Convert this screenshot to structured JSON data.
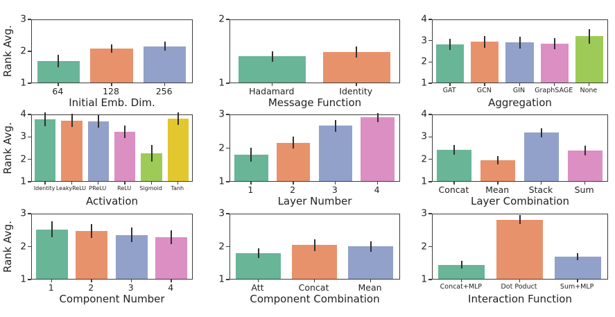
{
  "figure": {
    "description": "3x3 grid of bar charts of Rank Avg. across GNN design dimensions",
    "background": "#ffffff",
    "shared_ylabel": "Rank Avg.",
    "palette": [
      "#68b597",
      "#e8926c",
      "#92a1c9",
      "#dc8fc3",
      "#9ecb57",
      "#e2c72e"
    ],
    "error_bar_color": "#2f2f2f",
    "axis_color": "#3a3a3a",
    "text_color": "#222222"
  },
  "chart_data": [
    {
      "type": "bar",
      "xlabel": "Initial Emb. Dim.",
      "ylabel": "Rank Avg.",
      "categories": [
        "64",
        "128",
        "256"
      ],
      "values": [
        1.67,
        2.06,
        2.14
      ],
      "errors": [
        0.2,
        0.13,
        0.15
      ],
      "ylim": [
        1,
        3
      ],
      "yticks": [
        1,
        2,
        3
      ],
      "grid": false,
      "legend": "none"
    },
    {
      "type": "bar",
      "xlabel": "Message Function",
      "ylabel": "",
      "categories": [
        "Hadamard",
        "Identity"
      ],
      "values": [
        1.41,
        1.48
      ],
      "errors": [
        0.08,
        0.09
      ],
      "ylim": [
        1,
        2
      ],
      "yticks": [
        1,
        2
      ],
      "grid": false,
      "legend": "none"
    },
    {
      "type": "bar",
      "xlabel": "Aggregation",
      "ylabel": "",
      "categories": [
        "GAT",
        "GCN",
        "GIN",
        "GraphSAGE",
        "None"
      ],
      "values": [
        2.8,
        2.91,
        2.88,
        2.83,
        3.17
      ],
      "errors": [
        0.27,
        0.27,
        0.28,
        0.25,
        0.33
      ],
      "ylim": [
        1,
        4
      ],
      "yticks": [
        1,
        2,
        3,
        4
      ],
      "grid": false,
      "legend": "none"
    },
    {
      "type": "bar",
      "xlabel": "Activation",
      "ylabel": "Rank Avg.",
      "categories": [
        "Identity",
        "LeakyReLU",
        "PReLU",
        "ReLU",
        "Sigmoid",
        "Tanh"
      ],
      "values": [
        3.75,
        3.7,
        3.66,
        3.2,
        2.24,
        3.79
      ],
      "errors": [
        0.32,
        0.3,
        0.29,
        0.27,
        0.38,
        0.27
      ],
      "ylim": [
        1,
        4
      ],
      "yticks": [
        1,
        2,
        3,
        4
      ],
      "grid": false,
      "legend": "none"
    },
    {
      "type": "bar",
      "xlabel": "Layer Number",
      "ylabel": "",
      "categories": [
        "1",
        "2",
        "3",
        "4"
      ],
      "values": [
        1.78,
        2.14,
        2.64,
        2.89
      ],
      "errors": [
        0.2,
        0.18,
        0.18,
        0.13
      ],
      "ylim": [
        1,
        3
      ],
      "yticks": [
        1,
        2,
        3
      ],
      "grid": false,
      "legend": "none"
    },
    {
      "type": "bar",
      "xlabel": "Layer Combination",
      "ylabel": "",
      "categories": [
        "Concat",
        "Mean",
        "Stack",
        "Sum"
      ],
      "values": [
        2.4,
        1.92,
        3.15,
        2.36
      ],
      "errors": [
        0.21,
        0.18,
        0.2,
        0.21
      ],
      "ylim": [
        1,
        4
      ],
      "yticks": [
        1,
        2,
        3,
        4
      ],
      "grid": false,
      "legend": "none"
    },
    {
      "type": "bar",
      "xlabel": "Component Number",
      "ylabel": "Rank Avg.",
      "categories": [
        "1",
        "2",
        "3",
        "4"
      ],
      "values": [
        2.5,
        2.46,
        2.33,
        2.27
      ],
      "errors": [
        0.24,
        0.21,
        0.22,
        0.21
      ],
      "ylim": [
        1,
        3
      ],
      "yticks": [
        1,
        2,
        3
      ],
      "grid": false,
      "legend": "none"
    },
    {
      "type": "bar",
      "xlabel": "Component Combination",
      "ylabel": "",
      "categories": [
        "Att",
        "Concat",
        "Mean"
      ],
      "values": [
        1.78,
        2.03,
        1.98
      ],
      "errors": [
        0.14,
        0.18,
        0.16
      ],
      "ylim": [
        1,
        3
      ],
      "yticks": [
        1,
        2,
        3
      ],
      "grid": false,
      "legend": "none"
    },
    {
      "type": "bar",
      "xlabel": "Interaction Function",
      "ylabel": "",
      "categories": [
        "Concat+MLP",
        "Dot Poduct",
        "Sum+MLP"
      ],
      "values": [
        1.43,
        2.8,
        1.67
      ],
      "errors": [
        0.11,
        0.13,
        0.11
      ],
      "ylim": [
        1,
        3
      ],
      "yticks": [
        1,
        2,
        3
      ],
      "grid": false,
      "legend": "none"
    }
  ]
}
